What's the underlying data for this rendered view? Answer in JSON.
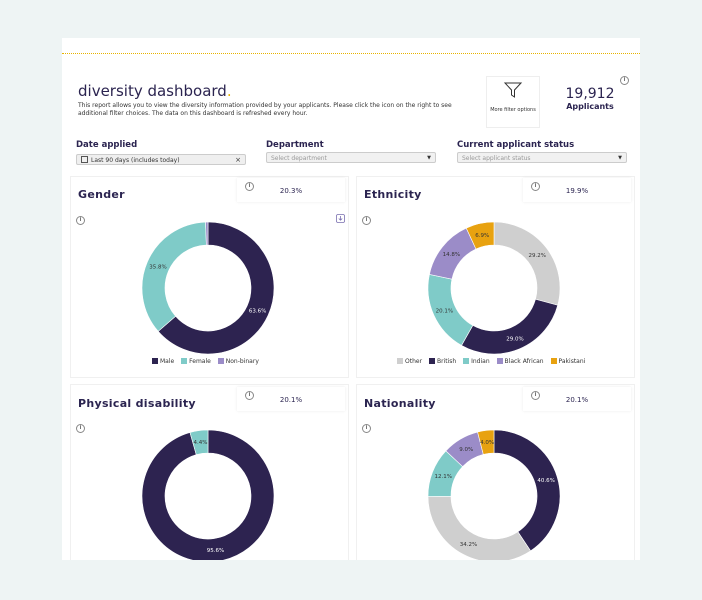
{
  "header": {
    "title": "diversity dashboard",
    "title_dot": ".",
    "description": "This report allows you to view the diversity information provided by your applicants. Please click the icon on the right to see additional filter choices. The data on this dashboard is refreshed every hour.",
    "filter_label": "More filter options",
    "applicants_count": "19,912",
    "applicants_label": "Applicants"
  },
  "filters": {
    "date_label": "Date applied",
    "date_value": "Last 90 days (includes today)",
    "department_label": "Department",
    "department_placeholder": "Select department",
    "status_label": "Current applicant status",
    "status_placeholder": "Select applicant status"
  },
  "icons": {
    "info": "i",
    "download": "download-icon",
    "filter": "funnel-icon",
    "calendar": "calendar-icon"
  },
  "colors": {
    "navy": "#2d2350",
    "teal": "#7fcbc8",
    "purple": "#9b8cc8",
    "grey": "#cfcfcf",
    "orange": "#e8a210",
    "accent": "#e8b300"
  },
  "panels": {
    "gender": {
      "title": "Gender",
      "pct": "20.3%"
    },
    "ethnicity": {
      "title": "Ethnicity",
      "pct": "19.9%"
    },
    "disability": {
      "title": "Physical disability",
      "pct": "20.1%"
    },
    "nationality": {
      "title": "Nationality",
      "pct": "20.1%"
    }
  },
  "chart_data": [
    {
      "type": "pie",
      "title": "Gender",
      "categories": [
        "Male",
        "Female",
        "Non-binary"
      ],
      "values": [
        63.6,
        35.8,
        0.6
      ],
      "labels": [
        "63.6%",
        "35.8%",
        ""
      ],
      "colors": [
        "#2d2350",
        "#7fcbc8",
        "#9b8cc8"
      ],
      "legend": "bottom"
    },
    {
      "type": "pie",
      "title": "Ethnicity",
      "categories": [
        "Other",
        "British",
        "Indian",
        "Black African",
        "Pakistani"
      ],
      "values": [
        29.2,
        29.0,
        20.1,
        14.8,
        6.9
      ],
      "labels": [
        "29.2%",
        "29.0%",
        "20.1%",
        "14.8%",
        "6.9%"
      ],
      "colors": [
        "#cfcfcf",
        "#2d2350",
        "#7fcbc8",
        "#9b8cc8",
        "#e8a210"
      ],
      "legend": "bottom"
    },
    {
      "type": "pie",
      "title": "Physical disability",
      "categories": [
        "",
        ""
      ],
      "values": [
        95.6,
        4.4
      ],
      "labels": [
        "95.6%",
        "4.4%"
      ],
      "colors": [
        "#2d2350",
        "#7fcbc8"
      ]
    },
    {
      "type": "pie",
      "title": "Nationality",
      "categories": [
        "",
        "",
        "",
        "",
        ""
      ],
      "values": [
        40.6,
        34.2,
        12.1,
        9.0,
        4.0
      ],
      "labels": [
        "40.6%",
        "34.2%",
        "12.1%",
        "9.0%",
        "4.0%"
      ],
      "colors": [
        "#2d2350",
        "#cfcfcf",
        "#7fcbc8",
        "#9b8cc8",
        "#e8a210"
      ]
    }
  ]
}
